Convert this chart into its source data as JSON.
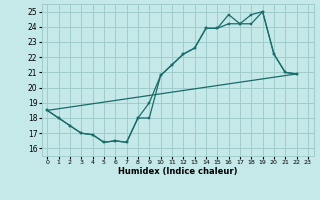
{
  "xlabel": "Humidex (Indice chaleur)",
  "xlim": [
    -0.5,
    23.5
  ],
  "ylim": [
    15.5,
    25.5
  ],
  "yticks": [
    16,
    17,
    18,
    19,
    20,
    21,
    22,
    23,
    24,
    25
  ],
  "xticks": [
    0,
    1,
    2,
    3,
    4,
    5,
    6,
    7,
    8,
    9,
    10,
    11,
    12,
    13,
    14,
    15,
    16,
    17,
    18,
    19,
    20,
    21,
    22,
    23
  ],
  "bg_color": "#c5e8e8",
  "grid_color": "#a0cccc",
  "line_color": "#1a6b6b",
  "line1_x": [
    0,
    1,
    2,
    3,
    4,
    5,
    6,
    7,
    8,
    9,
    10,
    11,
    12,
    13,
    14,
    15,
    16,
    17,
    18,
    19,
    20,
    21,
    22
  ],
  "line1_y": [
    18.5,
    18.0,
    17.5,
    17.0,
    16.9,
    16.4,
    16.5,
    16.4,
    18.0,
    18.0,
    20.8,
    21.5,
    22.2,
    22.6,
    23.9,
    23.9,
    24.8,
    24.2,
    24.8,
    25.0,
    22.2,
    21.0,
    20.9
  ],
  "line2_x": [
    0,
    1,
    2,
    3,
    4,
    5,
    6,
    7,
    8,
    9,
    10,
    11,
    12,
    13,
    14,
    15,
    16,
    17,
    18,
    19,
    20,
    21,
    22
  ],
  "line2_y": [
    18.5,
    18.0,
    17.5,
    17.0,
    16.9,
    16.4,
    16.5,
    16.4,
    18.0,
    19.0,
    20.8,
    21.5,
    22.2,
    22.6,
    23.9,
    23.9,
    24.2,
    24.2,
    24.2,
    25.0,
    22.2,
    21.0,
    20.9
  ],
  "line3_x": [
    0,
    22
  ],
  "line3_y": [
    18.5,
    20.9
  ]
}
